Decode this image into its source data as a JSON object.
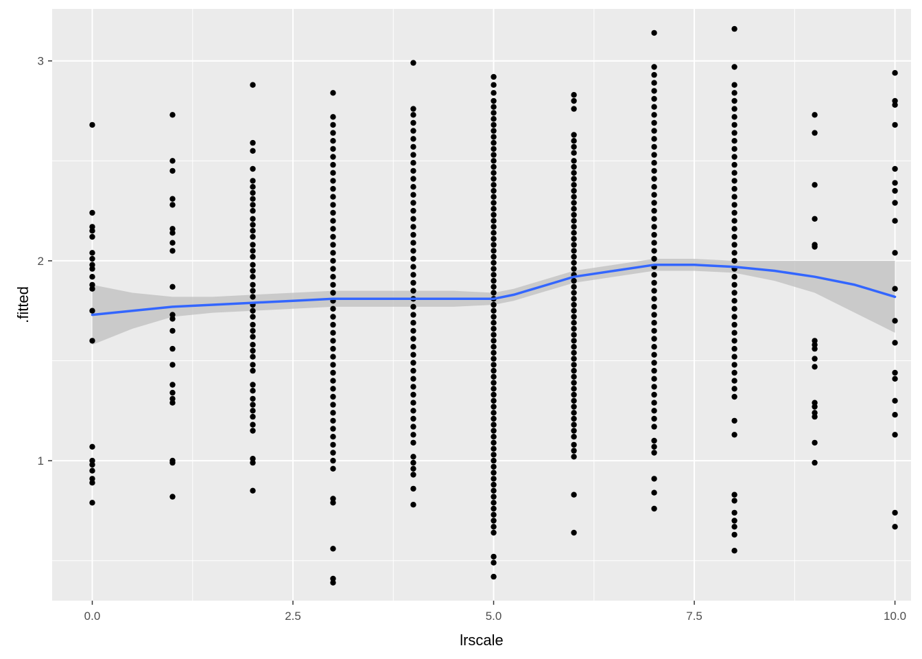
{
  "chart_data": {
    "type": "scatter",
    "xlabel": "lrscale",
    "ylabel": ".fitted",
    "xlim": [
      -0.5,
      10.2
    ],
    "ylim": [
      0.3,
      3.26
    ],
    "x_ticks": [
      0,
      2.5,
      5,
      7.5,
      10
    ],
    "x_tick_labels": [
      "0.0",
      "2.5",
      "5.0",
      "7.5",
      "10.0"
    ],
    "y_ticks": [
      1,
      2,
      3
    ],
    "y_tick_labels": [
      "1",
      "2",
      "3"
    ],
    "grid": true,
    "legend": "none",
    "colors": {
      "panel": "#EBEBEB",
      "grid": "#FFFFFF",
      "points": "#000000",
      "smooth_line": "#3366FF",
      "ribbon": "#BFBFBF"
    },
    "series": [
      {
        "kind": "points",
        "groups": [
          {
            "x": 0,
            "y": [
              2.68,
              2.24,
              2.17,
              2.15,
              2.12,
              2.04,
              2.01,
              1.98,
              1.96,
              1.92,
              1.88,
              1.86,
              1.75,
              1.6,
              1.07,
              1.0,
              0.98,
              0.95,
              0.91,
              0.89,
              0.79
            ]
          },
          {
            "x": 1,
            "y": [
              2.73,
              2.5,
              2.45,
              2.31,
              2.28,
              2.16,
              2.14,
              2.09,
              2.05,
              1.87,
              1.73,
              1.71,
              1.65,
              1.56,
              1.48,
              1.38,
              1.34,
              1.31,
              1.29,
              1.0,
              0.99,
              0.82
            ]
          },
          {
            "x": 2,
            "y": [
              2.88,
              2.59,
              2.55,
              2.46,
              2.4,
              2.37,
              2.34,
              2.31,
              2.28,
              2.25,
              2.21,
              2.18,
              2.15,
              2.12,
              2.08,
              2.05,
              2.02,
              1.98,
              1.95,
              1.92,
              1.88,
              1.85,
              1.82,
              1.78,
              1.75,
              1.72,
              1.68,
              1.65,
              1.62,
              1.58,
              1.55,
              1.52,
              1.48,
              1.45,
              1.38,
              1.35,
              1.31,
              1.28,
              1.25,
              1.22,
              1.18,
              1.15,
              1.01,
              0.99,
              0.85
            ]
          },
          {
            "x": 3,
            "y": [
              2.84,
              2.72,
              2.68,
              2.64,
              2.6,
              2.56,
              2.52,
              2.48,
              2.44,
              2.4,
              2.36,
              2.32,
              2.28,
              2.24,
              2.2,
              2.16,
              2.12,
              2.08,
              2.04,
              2.0,
              1.96,
              1.92,
              1.88,
              1.84,
              1.8,
              1.76,
              1.72,
              1.68,
              1.64,
              1.6,
              1.56,
              1.52,
              1.48,
              1.44,
              1.4,
              1.36,
              1.32,
              1.28,
              1.24,
              1.2,
              1.16,
              1.12,
              1.08,
              1.04,
              1.0,
              0.96,
              0.81,
              0.79,
              0.56,
              0.41,
              0.39
            ]
          },
          {
            "x": 4,
            "y": [
              2.99,
              2.76,
              2.73,
              2.69,
              2.65,
              2.61,
              2.57,
              2.53,
              2.49,
              2.45,
              2.41,
              2.37,
              2.33,
              2.29,
              2.25,
              2.21,
              2.17,
              2.13,
              2.09,
              2.05,
              2.01,
              1.97,
              1.93,
              1.89,
              1.85,
              1.81,
              1.77,
              1.73,
              1.69,
              1.65,
              1.61,
              1.57,
              1.53,
              1.49,
              1.45,
              1.41,
              1.37,
              1.33,
              1.29,
              1.25,
              1.21,
              1.17,
              1.13,
              1.09,
              1.02,
              0.99,
              0.96,
              0.93,
              0.86,
              0.78
            ]
          },
          {
            "x": 5,
            "y": [
              2.92,
              2.88,
              2.84,
              2.8,
              2.77,
              2.74,
              2.71,
              2.68,
              2.65,
              2.62,
              2.59,
              2.56,
              2.53,
              2.5,
              2.47,
              2.44,
              2.41,
              2.38,
              2.35,
              2.32,
              2.29,
              2.26,
              2.23,
              2.2,
              2.17,
              2.14,
              2.11,
              2.08,
              2.05,
              2.02,
              1.99,
              1.96,
              1.93,
              1.9,
              1.87,
              1.84,
              1.81,
              1.78,
              1.75,
              1.72,
              1.69,
              1.66,
              1.63,
              1.6,
              1.57,
              1.54,
              1.51,
              1.48,
              1.45,
              1.42,
              1.39,
              1.36,
              1.33,
              1.3,
              1.27,
              1.24,
              1.21,
              1.18,
              1.15,
              1.12,
              1.09,
              1.06,
              1.03,
              1.0,
              0.97,
              0.94,
              0.91,
              0.88,
              0.85,
              0.82,
              0.79,
              0.76,
              0.73,
              0.7,
              0.67,
              0.64,
              0.52,
              0.49,
              0.42
            ]
          },
          {
            "x": 6,
            "y": [
              2.83,
              2.8,
              2.76,
              2.63,
              2.6,
              2.57,
              2.54,
              2.5,
              2.47,
              2.44,
              2.41,
              2.38,
              2.35,
              2.32,
              2.29,
              2.26,
              2.23,
              2.2,
              2.17,
              2.14,
              2.11,
              2.08,
              2.05,
              2.02,
              1.99,
              1.96,
              1.93,
              1.9,
              1.87,
              1.84,
              1.81,
              1.78,
              1.75,
              1.72,
              1.69,
              1.66,
              1.63,
              1.6,
              1.57,
              1.54,
              1.51,
              1.48,
              1.45,
              1.42,
              1.39,
              1.36,
              1.33,
              1.3,
              1.27,
              1.24,
              1.21,
              1.18,
              1.15,
              1.12,
              1.08,
              1.05,
              1.02,
              0.83,
              0.64
            ]
          },
          {
            "x": 7,
            "y": [
              3.14,
              2.97,
              2.93,
              2.89,
              2.85,
              2.81,
              2.77,
              2.73,
              2.69,
              2.65,
              2.61,
              2.57,
              2.53,
              2.49,
              2.45,
              2.41,
              2.37,
              2.33,
              2.29,
              2.25,
              2.21,
              2.17,
              2.13,
              2.09,
              2.05,
              2.01,
              1.97,
              1.93,
              1.89,
              1.85,
              1.81,
              1.77,
              1.73,
              1.69,
              1.65,
              1.61,
              1.57,
              1.53,
              1.49,
              1.45,
              1.41,
              1.37,
              1.33,
              1.29,
              1.25,
              1.21,
              1.17,
              1.1,
              1.07,
              1.04,
              0.91,
              0.84,
              0.76
            ]
          },
          {
            "x": 8,
            "y": [
              3.16,
              2.97,
              2.88,
              2.84,
              2.8,
              2.76,
              2.72,
              2.68,
              2.64,
              2.6,
              2.56,
              2.52,
              2.48,
              2.44,
              2.4,
              2.36,
              2.32,
              2.28,
              2.24,
              2.2,
              2.16,
              2.12,
              2.08,
              2.04,
              2.0,
              1.96,
              1.92,
              1.88,
              1.84,
              1.8,
              1.76,
              1.72,
              1.68,
              1.64,
              1.6,
              1.56,
              1.52,
              1.48,
              1.44,
              1.4,
              1.36,
              1.32,
              1.2,
              1.13,
              0.83,
              0.8,
              0.74,
              0.7,
              0.67,
              0.63,
              0.55
            ]
          },
          {
            "x": 9,
            "y": [
              2.73,
              2.64,
              2.38,
              2.21,
              2.08,
              2.07,
              1.6,
              1.58,
              1.56,
              1.51,
              1.47,
              1.29,
              1.27,
              1.24,
              1.22,
              1.09,
              0.99
            ]
          },
          {
            "x": 10,
            "y": [
              2.94,
              2.8,
              2.78,
              2.68,
              2.46,
              2.39,
              2.35,
              2.29,
              2.2,
              2.04,
              1.86,
              1.7,
              1.59,
              1.44,
              1.41,
              1.3,
              1.23,
              1.13,
              0.74,
              0.67
            ]
          }
        ]
      },
      {
        "kind": "smooth",
        "x": [
          0,
          0.5,
          1,
          1.5,
          2,
          2.5,
          3,
          3.5,
          4,
          4.5,
          5,
          5.25,
          5.5,
          5.75,
          6,
          6.5,
          7,
          7.5,
          8,
          8.5,
          9,
          9.5,
          10
        ],
        "y": [
          1.73,
          1.75,
          1.77,
          1.78,
          1.79,
          1.8,
          1.81,
          1.81,
          1.81,
          1.81,
          1.81,
          1.83,
          1.86,
          1.89,
          1.92,
          1.95,
          1.98,
          1.98,
          1.97,
          1.95,
          1.92,
          1.88,
          1.82
        ],
        "ymin": [
          1.58,
          1.66,
          1.72,
          1.74,
          1.75,
          1.76,
          1.77,
          1.77,
          1.77,
          1.77,
          1.78,
          1.8,
          1.83,
          1.86,
          1.89,
          1.92,
          1.95,
          1.95,
          1.94,
          1.9,
          1.84,
          1.74,
          1.64
        ],
        "ymax": [
          1.88,
          1.84,
          1.82,
          1.82,
          1.83,
          1.84,
          1.85,
          1.85,
          1.85,
          1.85,
          1.84,
          1.86,
          1.89,
          1.92,
          1.95,
          1.98,
          2.01,
          2.01,
          2.0,
          2.0,
          2.0,
          2.0,
          2.0
        ]
      }
    ]
  }
}
